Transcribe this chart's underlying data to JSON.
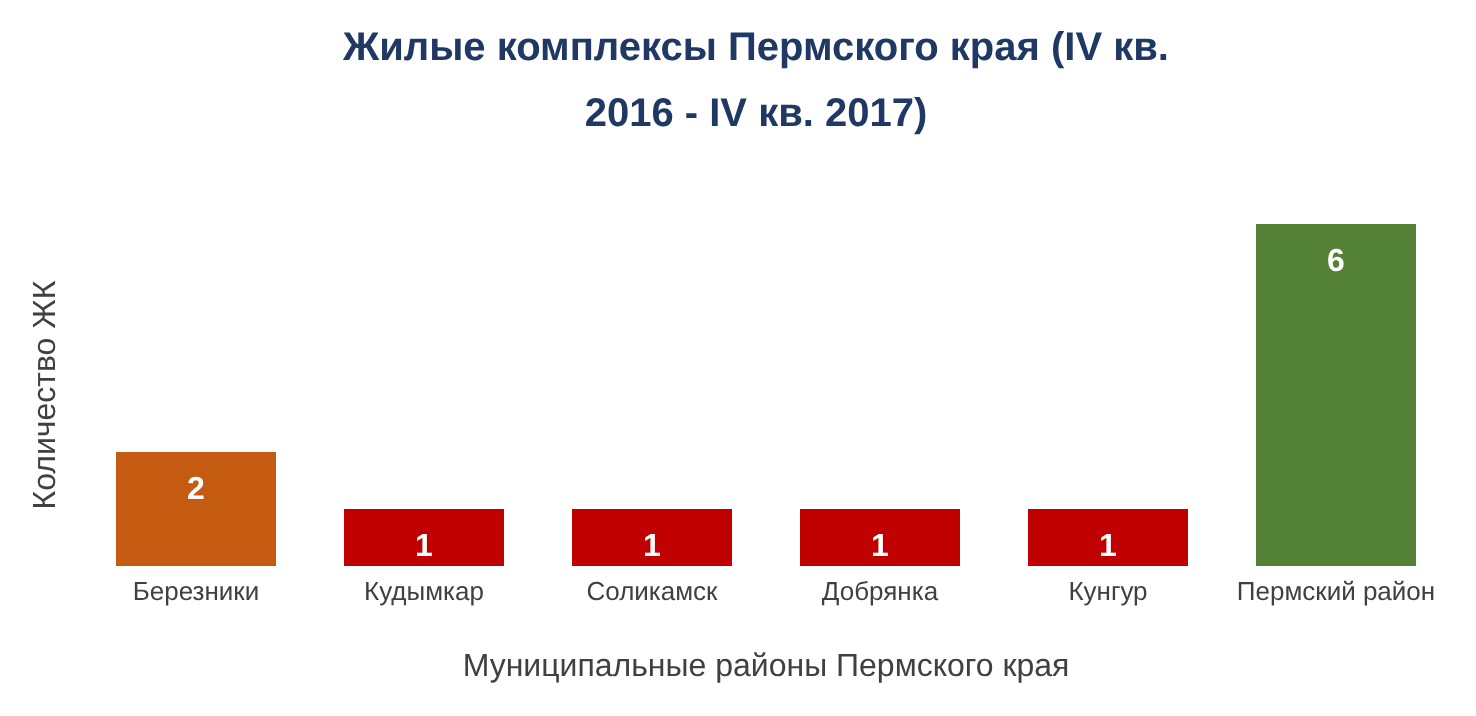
{
  "chart_data": {
    "type": "bar",
    "title": "Жилые комплексы Пермского края (IV кв. 2016 - IV кв. 2017)",
    "xlabel": "Муниципальные районы Пермского края",
    "ylabel": "Количество ЖК",
    "categories": [
      "Березники",
      "Кудымкар",
      "Соликамск",
      "Добрянка",
      "Кунгур",
      "Пермский район"
    ],
    "values": [
      2,
      1,
      1,
      1,
      1,
      6
    ],
    "colors": [
      "#c55a11",
      "#c00000",
      "#c00000",
      "#c00000",
      "#c00000",
      "#538135"
    ],
    "data_labels": true
  }
}
